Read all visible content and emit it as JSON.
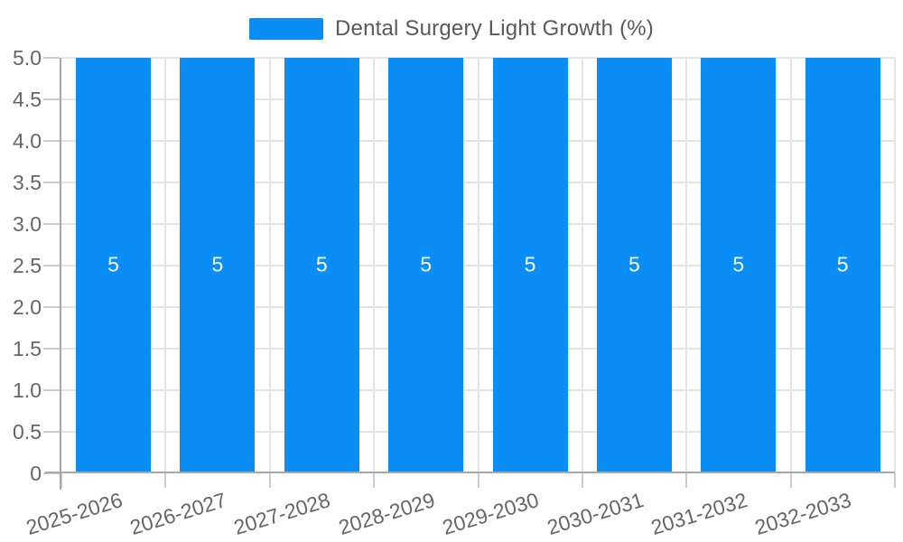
{
  "legend": {
    "label": "Dental Surgery Light Growth (%)",
    "swatch_color": "#0a8ef5"
  },
  "chart_data": {
    "type": "bar",
    "title": "Dental Surgery Light Growth (%)",
    "categories": [
      "2025-2026",
      "2026-2027",
      "2027-2028",
      "2028-2029",
      "2029-2030",
      "2030-2031",
      "2031-2032",
      "2032-2033"
    ],
    "series": [
      {
        "name": "Dental Surgery Light Growth (%)",
        "color": "#0a8ef5",
        "values": [
          5,
          5,
          5,
          5,
          5,
          5,
          5,
          5
        ]
      }
    ],
    "value_labels": [
      "5",
      "5",
      "5",
      "5",
      "5",
      "5",
      "5",
      "5"
    ],
    "xlabel": "",
    "ylabel": "",
    "ylim": [
      0,
      5
    ],
    "ytick_step": 0.5,
    "ytick_labels_top_to_bottom": [
      "5.0",
      "4.5",
      "4.0",
      "3.5",
      "3.0",
      "2.5",
      "2.0",
      "1.5",
      "1.0",
      "0.5",
      "0"
    ],
    "x_label_rotation_deg": -17,
    "grid": true,
    "legend_position": "top-center",
    "colors": {
      "bar": "#0a8ef5",
      "value_label_text": "#ffffff",
      "axis_line": "#a8a8a8",
      "gridline": "#e4e4e4",
      "tick_mark": "#cdcdcd",
      "tick_text": "#666666",
      "legend_text": "#595959",
      "background": "#ffffff"
    }
  }
}
